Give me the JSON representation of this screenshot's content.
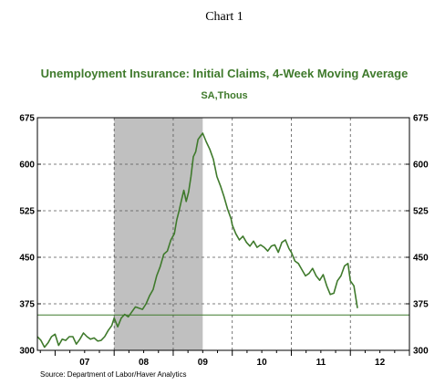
{
  "header": {
    "chart_label": "Chart 1"
  },
  "chart_data": {
    "type": "line",
    "title": "Unemployment Insurance: Initial Claims, 4-Week Moving Average",
    "subtitle": "SA,Thous",
    "source": "Source:  Department of Labor/Haver Analytics",
    "ylim": [
      300,
      675
    ],
    "xlim": [
      2006.7,
      2013.0
    ],
    "y_ticks": [
      300,
      375,
      450,
      525,
      600,
      675
    ],
    "y_tick_labels": [
      "300",
      "375",
      "450",
      "525",
      "600",
      "675"
    ],
    "x_year_labels": [
      {
        "year": 2007,
        "label": "07"
      },
      {
        "year": 2008,
        "label": "08"
      },
      {
        "year": 2009,
        "label": "09"
      },
      {
        "year": 2010,
        "label": "10"
      },
      {
        "year": 2011,
        "label": "11"
      },
      {
        "year": 2012,
        "label": "12"
      }
    ],
    "x_grid_years": [
      2008.0,
      2009.0,
      2010.0,
      2011.0,
      2012.0
    ],
    "recession_shading": [
      2008.0,
      2009.5
    ],
    "reference_line": 357,
    "grid": true,
    "colors": {
      "series": "#3f7a2c",
      "reference": "#3f7a2c",
      "shading": "#c0c0c0",
      "title": "#3f7a2c"
    },
    "series": [
      {
        "x": [
          2006.7,
          2006.76,
          2006.82,
          2006.88,
          2006.94,
          2007.0,
          2007.06,
          2007.12,
          2007.18,
          2007.24,
          2007.3,
          2007.36,
          2007.42,
          2007.48,
          2007.54,
          2007.6,
          2007.66,
          2007.72,
          2007.78,
          2007.84,
          2007.9,
          2007.96,
          2008.0,
          2008.06,
          2008.12,
          2008.18,
          2008.24,
          2008.3,
          2008.36,
          2008.42,
          2008.48,
          2008.54,
          2008.6,
          2008.66,
          2008.72,
          2008.78,
          2008.84,
          2008.9,
          2008.96,
          2009.02,
          2009.06,
          2009.1,
          2009.14,
          2009.18,
          2009.22,
          2009.26,
          2009.3,
          2009.34,
          2009.38,
          2009.42,
          2009.46,
          2009.5,
          2009.56,
          2009.62,
          2009.68,
          2009.74,
          2009.8,
          2009.86,
          2009.92,
          2009.98,
          2010.0,
          2010.06,
          2010.12,
          2010.18,
          2010.24,
          2010.3,
          2010.36,
          2010.42,
          2010.48,
          2010.54,
          2010.6,
          2010.66,
          2010.72,
          2010.78,
          2010.84,
          2010.9,
          2010.96,
          2011.0,
          2011.06,
          2011.12,
          2011.18,
          2011.24,
          2011.3,
          2011.36,
          2011.42,
          2011.48,
          2011.54,
          2011.6,
          2011.66,
          2011.72,
          2011.78,
          2011.84,
          2011.9,
          2011.96,
          2012.0,
          2012.06,
          2012.12
        ],
        "y": [
          322,
          316,
          305,
          312,
          322,
          326,
          308,
          318,
          316,
          322,
          322,
          310,
          318,
          328,
          322,
          318,
          320,
          315,
          316,
          322,
          332,
          340,
          352,
          338,
          352,
          358,
          354,
          362,
          370,
          368,
          366,
          375,
          388,
          398,
          420,
          435,
          455,
          460,
          478,
          488,
          510,
          525,
          542,
          558,
          540,
          555,
          580,
          612,
          620,
          640,
          645,
          650,
          636,
          624,
          608,
          580,
          565,
          548,
          528,
          512,
          502,
          488,
          478,
          484,
          474,
          468,
          476,
          466,
          470,
          466,
          460,
          468,
          470,
          458,
          474,
          478,
          464,
          458,
          444,
          440,
          430,
          420,
          424,
          432,
          420,
          413,
          422,
          404,
          390,
          392,
          412,
          420,
          436,
          440,
          412,
          404,
          368
        ]
      }
    ]
  }
}
